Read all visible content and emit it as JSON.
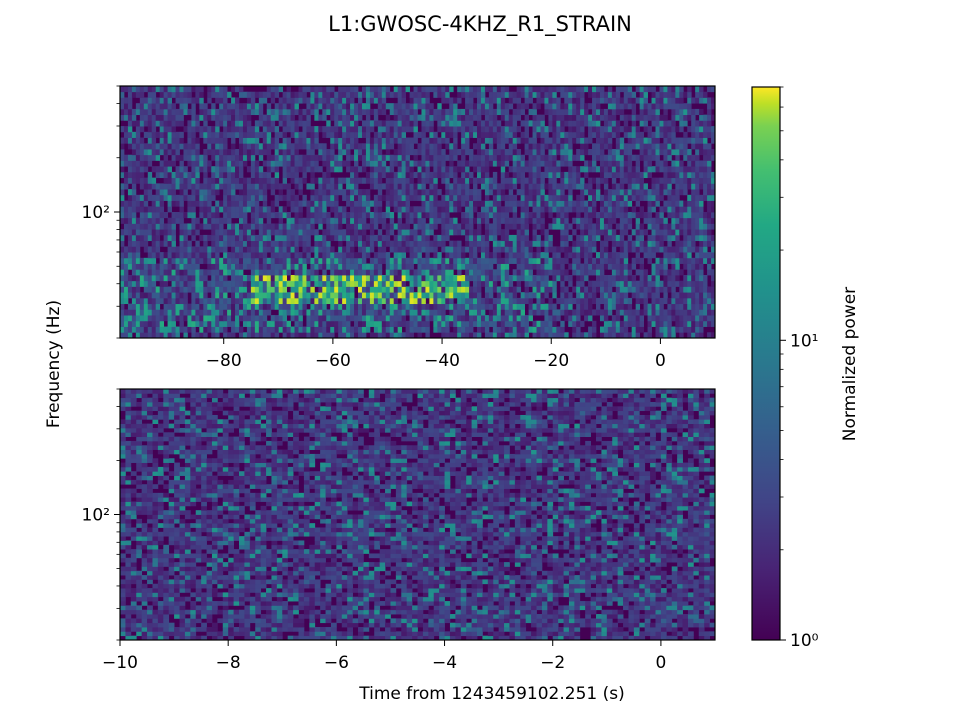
{
  "figure": {
    "title": "L1:GWOSC-4KHZ_R1_STRAIN"
  },
  "chart_data": [
    {
      "type": "heatmap",
      "panel": "top",
      "xlabel": "",
      "ylabel": "Frequency (Hz)",
      "xlim": [
        -99,
        10
      ],
      "xticks": [
        -80,
        -60,
        -40,
        -20,
        0
      ],
      "xtick_labels": [
        "−80",
        "−60",
        "−40",
        "−20",
        "0"
      ],
      "ylim": [
        20,
        500
      ],
      "yscale": "log",
      "ytick_labels": [
        "10²"
      ],
      "colormap": "viridis",
      "color_range": [
        1,
        70
      ],
      "features": [
        {
          "description": "broadband low-frequency excess",
          "t_start": -75,
          "t_end": -35,
          "f_low": 30,
          "f_high": 45,
          "peak_power": 40
        },
        {
          "description": "weaker low-frequency excess",
          "t_start": -99,
          "t_end": -20,
          "f_low": 22,
          "f_high": 55,
          "peak_power": 12
        },
        {
          "description": "noise floor",
          "t_start": -99,
          "t_end": 10,
          "f_low": 55,
          "f_high": 500,
          "peak_power": 8
        }
      ]
    },
    {
      "type": "heatmap",
      "panel": "bottom",
      "xlabel": "Time from 1243459102.251 (s)",
      "ylabel": "Frequency (Hz)",
      "xlim": [
        -10,
        1
      ],
      "xticks": [
        -10,
        -8,
        -6,
        -4,
        -2,
        0
      ],
      "xtick_labels": [
        "−10",
        "−8",
        "−6",
        "−4",
        "−2",
        "0"
      ],
      "ylim": [
        20,
        500
      ],
      "yscale": "log",
      "ytick_labels": [
        "10²"
      ],
      "colormap": "viridis",
      "color_range": [
        1,
        70
      ],
      "features": [
        {
          "description": "noise floor",
          "t_start": -10,
          "t_end": 1,
          "f_low": 20,
          "f_high": 500,
          "peak_power": 10
        }
      ]
    }
  ],
  "colorbar": {
    "label": "Normalized power",
    "scale": "log",
    "range": [
      1,
      70
    ],
    "tick_labels": [
      "10⁰",
      "10¹"
    ]
  },
  "colors": {
    "viridis_low": "#440154",
    "viridis_mid": "#21918c",
    "viridis_high": "#fde725"
  }
}
